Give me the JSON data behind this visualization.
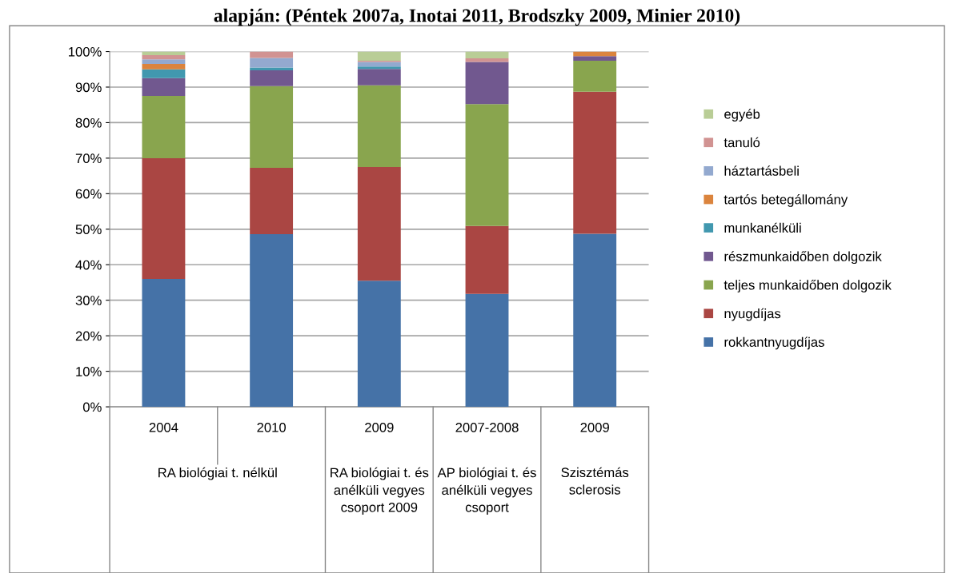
{
  "chart_data": {
    "type": "bar",
    "stacked": true,
    "title": "alapján: (Péntek 2007a, Inotai 2011, Brodszky 2009, Minier 2010)",
    "categories": [
      "2004",
      "2010",
      "2009",
      "2007-2008",
      "2009"
    ],
    "annotations": [
      "RA biológiai t. nélkül",
      "RA biológiai t. és anélküli vegyes csoport 2009",
      "AP biológiai t. és anélküli vegyes csoport",
      "Szisztémás sclerosis"
    ],
    "series": [
      {
        "name": "rokkantnyugdíjas",
        "color": "#4572a7",
        "values": [
          36,
          48.6,
          35.5,
          31.8,
          48.7
        ]
      },
      {
        "name": "nyugdíjas",
        "color": "#aa4643",
        "values": [
          34,
          18.7,
          32,
          19.1,
          40
        ]
      },
      {
        "name": "teljes munkaidőben dolgozik",
        "color": "#89a54e",
        "values": [
          17.5,
          23,
          23,
          34.3,
          8.7
        ]
      },
      {
        "name": "részmunkaidőben dolgozik",
        "color": "#71588f",
        "values": [
          5,
          4.4,
          4.6,
          11.9,
          1.3
        ]
      },
      {
        "name": "munkanélküli",
        "color": "#4198af",
        "values": [
          2.5,
          0.8,
          0.7,
          0,
          0
        ]
      },
      {
        "name": "tartós betegállomány",
        "color": "#db843d",
        "values": [
          1.5,
          0,
          0,
          0,
          1.3
        ]
      },
      {
        "name": "háztartásbeli",
        "color": "#93a9cf",
        "values": [
          1.3,
          2.7,
          1.3,
          0,
          0
        ]
      },
      {
        "name": "tanuló",
        "color": "#d19392",
        "values": [
          1.2,
          1.8,
          0.3,
          1.0,
          0
        ]
      },
      {
        "name": "egyéb",
        "color": "#b9cd96",
        "values": [
          1.0,
          0,
          2.6,
          1.9,
          0
        ]
      }
    ],
    "ylim": [
      0,
      100
    ],
    "yticks": [
      {
        "value": 0,
        "label": "0%"
      },
      {
        "value": 10,
        "label": "10%"
      },
      {
        "value": 20,
        "label": "20%"
      },
      {
        "value": 30,
        "label": "30%"
      },
      {
        "value": 40,
        "label": "40%"
      },
      {
        "value": 50,
        "label": "50%"
      },
      {
        "value": 60,
        "label": "60%"
      },
      {
        "value": 70,
        "label": "70%"
      },
      {
        "value": 80,
        "label": "80%"
      },
      {
        "value": 90,
        "label": "90%"
      },
      {
        "value": 100,
        "label": "100%"
      }
    ],
    "grid": "y",
    "legend": "right"
  }
}
